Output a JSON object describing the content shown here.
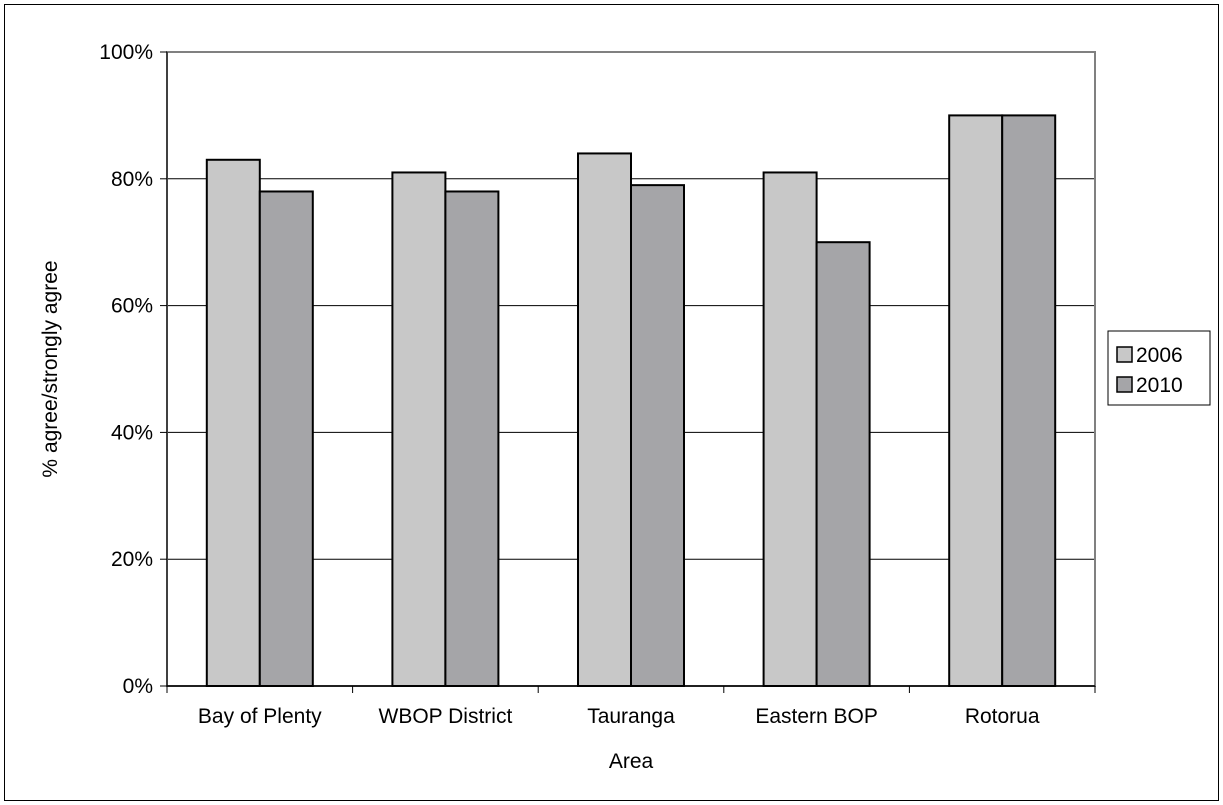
{
  "chart_data": {
    "type": "bar",
    "title": "",
    "xlabel": "Area",
    "ylabel": "% agree/strongly agree",
    "categories": [
      "Bay of Plenty",
      "WBOP District",
      "Tauranga",
      "Eastern BOP",
      "Rotorua"
    ],
    "series": [
      {
        "name": "2006",
        "values": [
          83,
          81,
          84,
          81,
          90
        ],
        "color": "#c8c8c8"
      },
      {
        "name": "2010",
        "values": [
          78,
          78,
          79,
          70,
          90
        ],
        "color": "#a5a5a8"
      }
    ],
    "ylim": [
      0,
      100
    ],
    "y_ticks": [
      0,
      20,
      40,
      60,
      80,
      100
    ],
    "y_tick_labels": [
      "0%",
      "20%",
      "40%",
      "60%",
      "80%",
      "100%"
    ],
    "grid": true,
    "legend": "right",
    "colors": {
      "plot_background": "#ffffff",
      "gridline": "#000000",
      "plot_border": "#808080",
      "bar_outline": "#000000"
    }
  }
}
